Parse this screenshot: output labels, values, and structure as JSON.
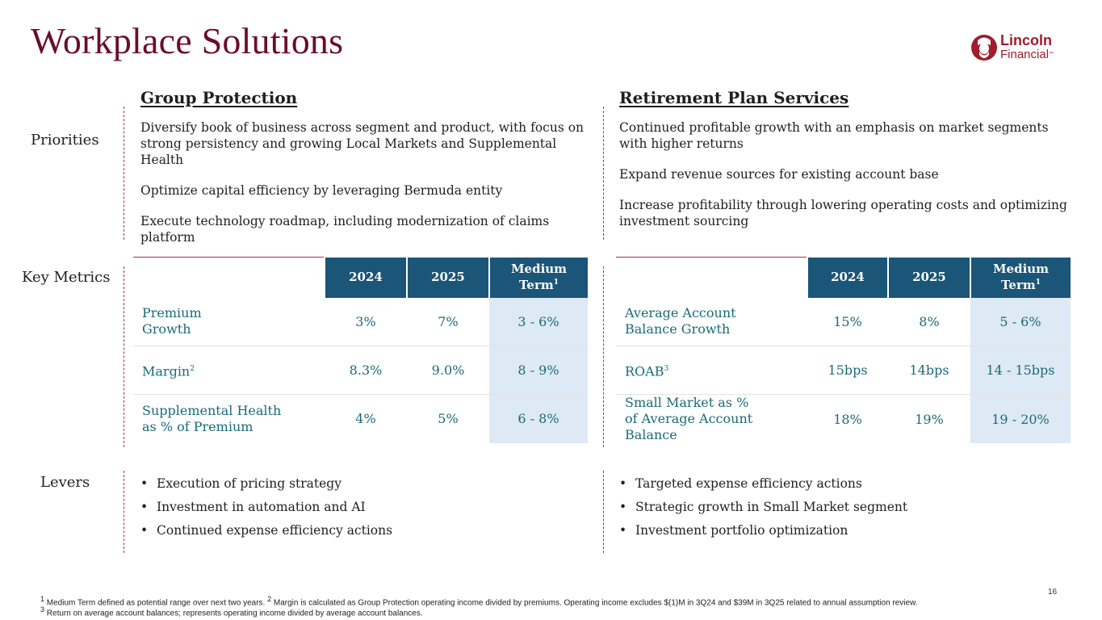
{
  "title": "Workplace Solutions",
  "logo": {
    "line1": "Lincoln",
    "line2": "Financial",
    "tm": "™"
  },
  "row_labels": {
    "priorities": "Priorities",
    "metrics": "Key Metrics",
    "levers": "Levers"
  },
  "group_protection": {
    "heading": "Group Protection",
    "priorities": [
      "Diversify book of business across segment and product, with focus on strong persistency and growing Local Markets and Supplemental Health",
      "Optimize capital efficiency by leveraging Bermuda entity",
      "Execute technology roadmap, including modernization of claims platform"
    ],
    "table": {
      "headers": [
        "2024",
        "2025",
        "Medium Term",
        "1"
      ],
      "rows": [
        {
          "label1": "Premium",
          "label2": "Growth",
          "v2024": "3%",
          "v2025": "7%",
          "medium": "3 - 6%"
        },
        {
          "label1": "Margin",
          "sup": "2",
          "v2024": "8.3%",
          "v2025": "9.0%",
          "medium": "8 - 9%"
        },
        {
          "label1": "Supplemental Health",
          "label2": "as % of Premium",
          "v2024": "4%",
          "v2025": "5%",
          "medium": "6 - 8%"
        }
      ]
    },
    "levers": [
      "Execution of pricing strategy",
      "Investment in automation and AI",
      "Continued expense efficiency actions"
    ]
  },
  "retirement": {
    "heading": "Retirement Plan Services",
    "priorities": [
      "Continued profitable growth with an emphasis on market segments with higher returns",
      "Expand revenue sources for existing account base",
      "Increase profitability through lowering operating costs and optimizing investment sourcing"
    ],
    "table": {
      "headers": [
        "2024",
        "2025",
        "Medium Term",
        "1"
      ],
      "rows": [
        {
          "label1": "Average Account",
          "label2": "Balance Growth",
          "v2024": "15%",
          "v2025": "8%",
          "medium": "5 - 6%"
        },
        {
          "label1": "ROAB",
          "sup": "3",
          "v2024": "15bps",
          "v2025": "14bps",
          "medium": "14 - 15bps"
        },
        {
          "label1": "Small Market as %",
          "label2": "of Average Account Balance",
          "v2024": "18%",
          "v2025": "19%",
          "medium": "19 - 20%"
        }
      ]
    },
    "levers": [
      "Targeted expense efficiency actions",
      "Strategic growth in Small Market segment",
      "Investment portfolio optimization"
    ]
  },
  "page_number": "16",
  "footnotes": {
    "f1_sup": "1",
    "f1": " Medium Term defined as potential range over next two years. ",
    "f2_sup": "2",
    "f2": " Margin is calculated as Group Protection operating income divided by premiums. Operating income excludes $(1)M in 3Q24 and $39M in 3Q25 related to annual assumption review.",
    "f3_sup": "3",
    "f3": " Return on average account balances; represents operating income divided by average account balances."
  },
  "colors": {
    "title": "#6b0d2a",
    "header_fill": "#1b5577",
    "medium_fill": "#dde9f4",
    "metric_text": "#1a6a78",
    "divider": "#a8324a"
  }
}
